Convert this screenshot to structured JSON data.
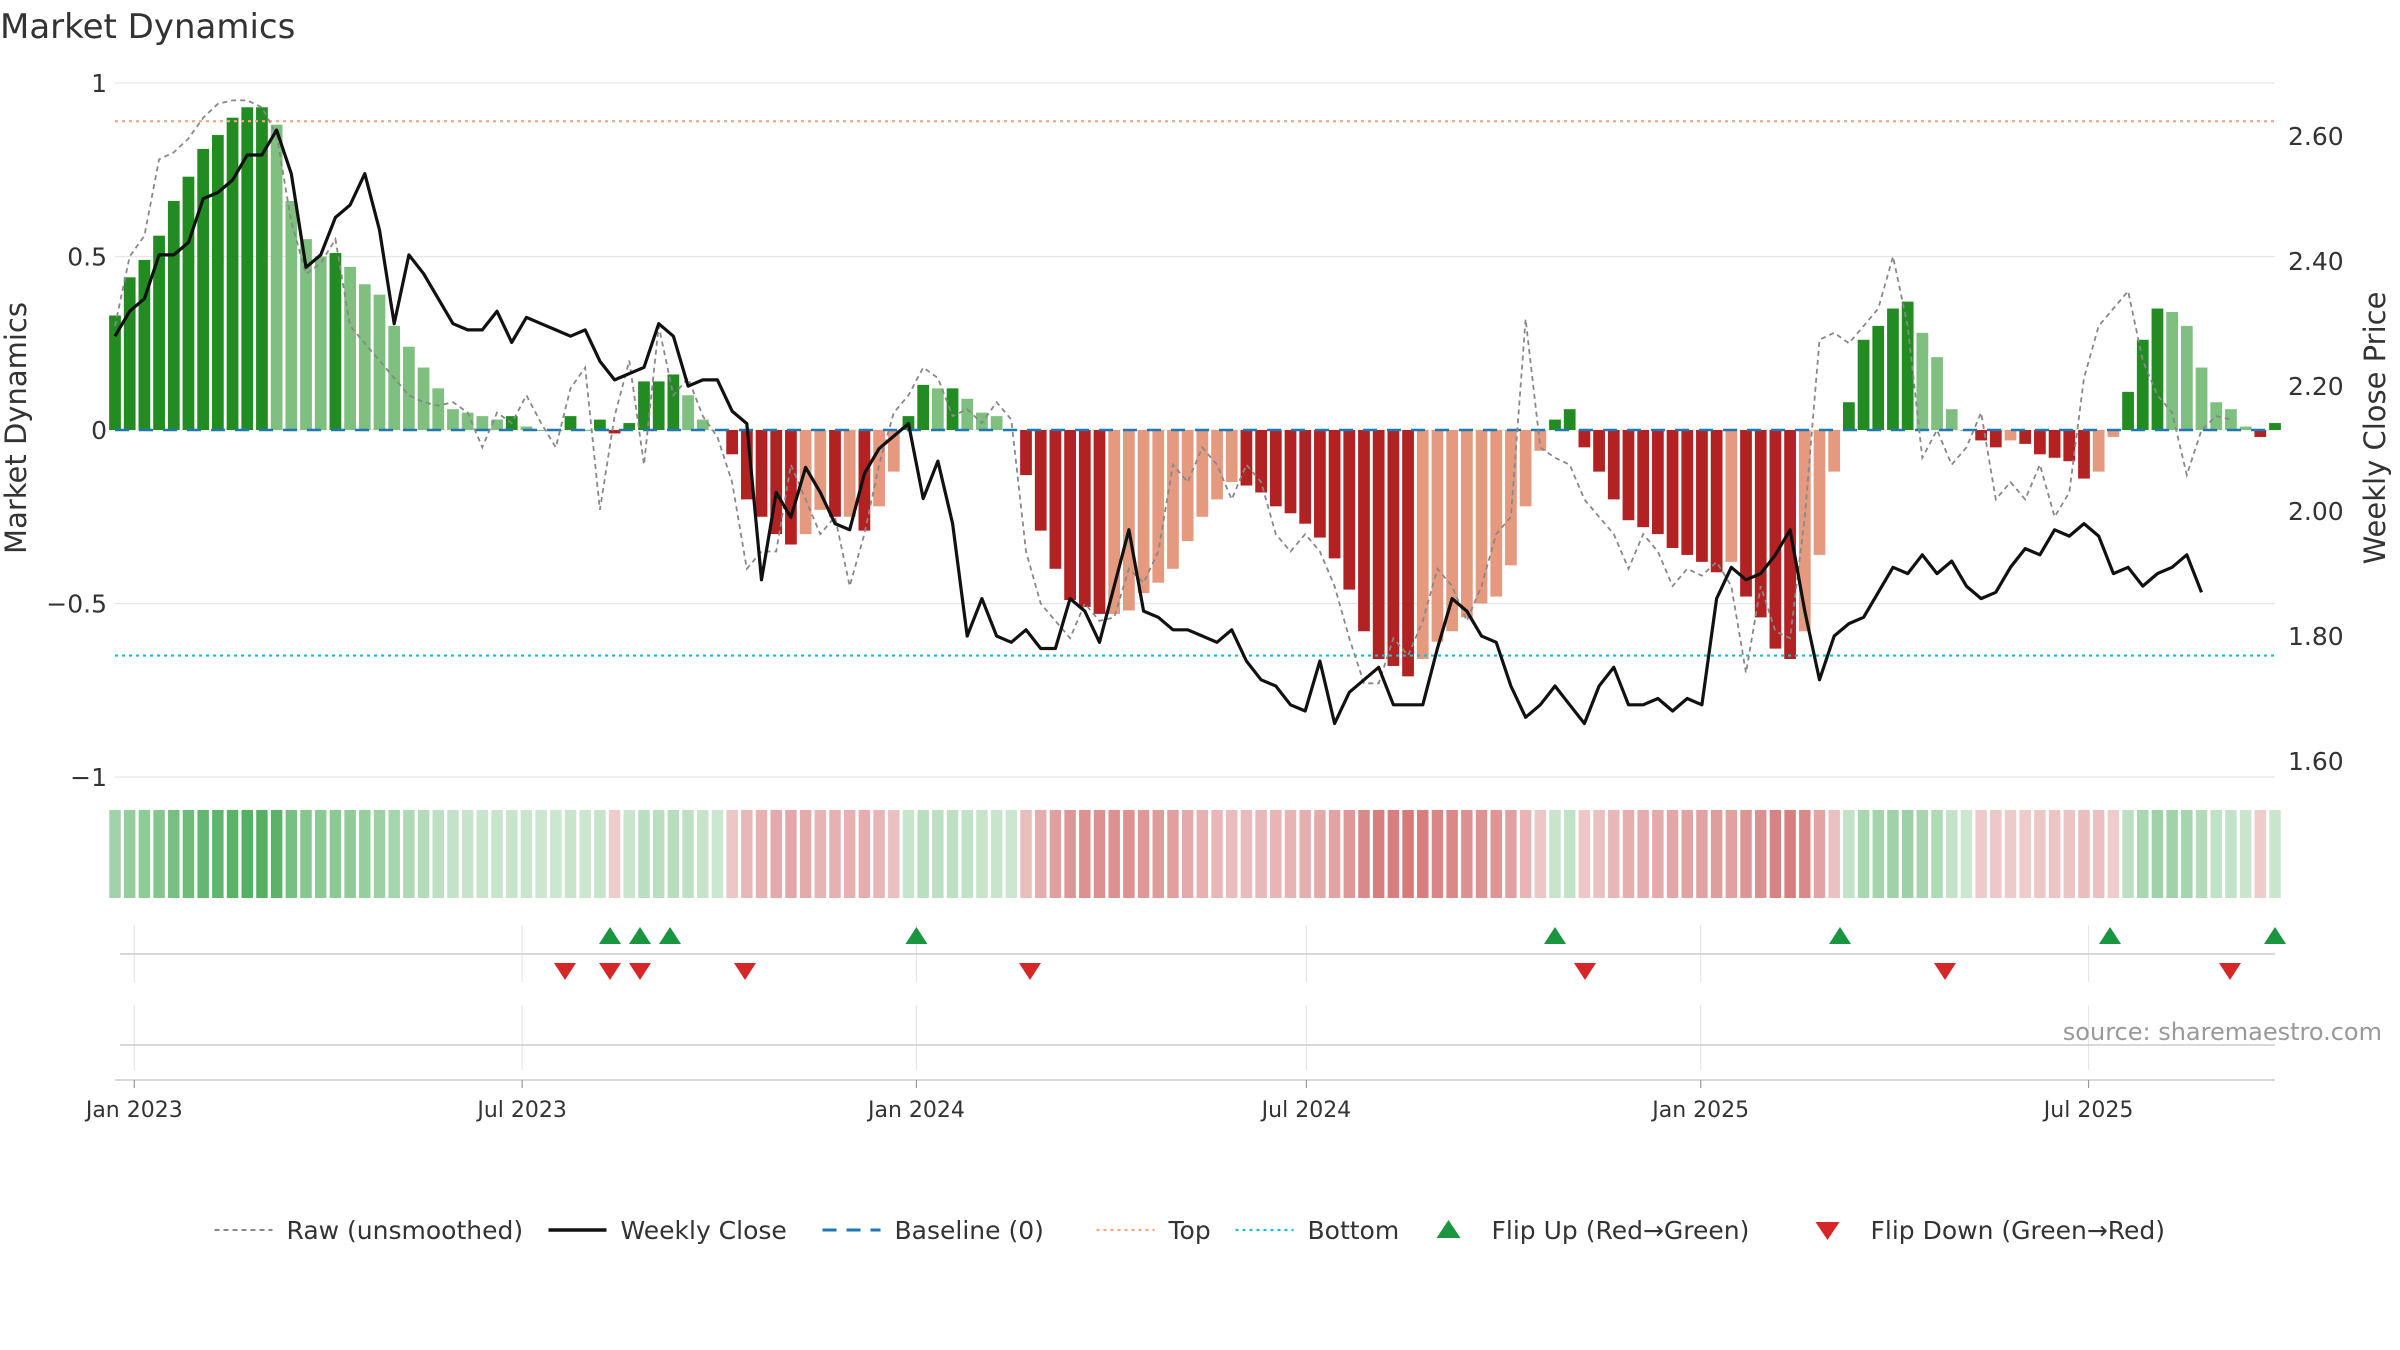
{
  "chart_data": {
    "type": "bar+line",
    "title": "Market Dynamics",
    "ylabel_left": "Market Dynamics",
    "ylabel_right": "Weekly Close Price",
    "ylim_left": [
      -1,
      1
    ],
    "ylim_right": [
      1.6,
      2.65
    ],
    "yticks_left": [
      "1",
      "0.5",
      "0",
      "−0.5",
      "−1"
    ],
    "yticks_left_values": [
      1,
      0.5,
      0,
      -0.5,
      -1
    ],
    "yticks_right": [
      "2.60",
      "2.40",
      "2.20",
      "2.00",
      "1.80",
      "1.60"
    ],
    "yticks_right_values": [
      2.6,
      2.4,
      2.2,
      2.0,
      1.8,
      1.6
    ],
    "x_start": "2022-12-23",
    "x_end": "2025-09-26",
    "xtick_labels": [
      "Jan 2023",
      "Jul 2023",
      "Jan 2024",
      "Jul 2024",
      "Jan 2025",
      "Jul 2025"
    ],
    "xtick_dates": [
      "2023-01-01",
      "2023-07-01",
      "2024-01-01",
      "2024-07-01",
      "2025-01-01",
      "2025-07-01"
    ],
    "top_level": 0.89,
    "bottom_level": -0.65,
    "grid": true,
    "legend_position": "bottom",
    "dynamics": [
      0.33,
      0.44,
      0.49,
      0.56,
      0.66,
      0.73,
      0.81,
      0.85,
      0.9,
      0.93,
      0.93,
      0.88,
      0.66,
      0.55,
      0.5,
      0.51,
      0.47,
      0.42,
      0.39,
      0.3,
      0.24,
      0.18,
      0.12,
      0.06,
      0.05,
      0.04,
      0.03,
      0.04,
      0.01,
      0,
      0,
      0.04,
      0,
      0.03,
      -0.01,
      0.02,
      0.14,
      0.14,
      0.16,
      0.1,
      0.03,
      0,
      -0.07,
      -0.2,
      -0.25,
      -0.3,
      -0.33,
      -0.3,
      -0.23,
      -0.25,
      -0.25,
      -0.29,
      -0.22,
      -0.12,
      0.04,
      0.13,
      0.12,
      0.12,
      0.09,
      0.05,
      0.04,
      0,
      -0.13,
      -0.29,
      -0.4,
      -0.49,
      -0.51,
      -0.53,
      -0.53,
      -0.52,
      -0.47,
      -0.44,
      -0.4,
      -0.32,
      -0.25,
      -0.2,
      -0.15,
      -0.16,
      -0.18,
      -0.22,
      -0.24,
      -0.27,
      -0.31,
      -0.37,
      -0.46,
      -0.58,
      -0.66,
      -0.68,
      -0.71,
      -0.66,
      -0.61,
      -0.58,
      -0.54,
      -0.5,
      -0.48,
      -0.39,
      -0.22,
      -0.06,
      0.03,
      0.06,
      -0.05,
      -0.12,
      -0.2,
      -0.26,
      -0.28,
      -0.3,
      -0.34,
      -0.36,
      -0.38,
      -0.41,
      -0.38,
      -0.48,
      -0.54,
      -0.63,
      -0.66,
      -0.58,
      -0.36,
      -0.12,
      0.08,
      0.26,
      0.3,
      0.35,
      0.37,
      0.28,
      0.21,
      0.06,
      0,
      -0.03,
      -0.05,
      -0.03,
      -0.04,
      -0.07,
      -0.08,
      -0.09,
      -0.14,
      -0.12,
      -0.02,
      0.11,
      0.26,
      0.35,
      0.34,
      0.3,
      0.18,
      0.08,
      0.06,
      0.01,
      -0.02,
      0.02
    ],
    "raw": [
      0.3,
      0.5,
      0.56,
      0.78,
      0.8,
      0.84,
      0.9,
      0.94,
      0.95,
      0.95,
      0.93,
      0.85,
      0.6,
      0.45,
      0.48,
      0.55,
      0.3,
      0.25,
      0.2,
      0.15,
      0.1,
      0.08,
      0.07,
      0.08,
      0.05,
      -0.05,
      0.05,
      0.02,
      0.1,
      0.02,
      -0.05,
      0.12,
      0.18,
      -0.23,
      0.04,
      0.2,
      -0.1,
      0.3,
      0.1,
      0.15,
      0.04,
      -0.02,
      -0.15,
      -0.4,
      -0.35,
      -0.35,
      -0.1,
      -0.2,
      -0.3,
      -0.25,
      -0.45,
      -0.3,
      -0.1,
      0.05,
      0.1,
      0.18,
      0.15,
      0.04,
      0.06,
      0.02,
      0.08,
      0.03,
      -0.35,
      -0.5,
      -0.55,
      -0.6,
      -0.5,
      -0.55,
      -0.54,
      -0.4,
      -0.44,
      -0.35,
      -0.1,
      -0.15,
      -0.05,
      -0.1,
      -0.2,
      -0.1,
      -0.15,
      -0.3,
      -0.35,
      -0.3,
      -0.35,
      -0.45,
      -0.6,
      -0.73,
      -0.73,
      -0.6,
      -0.65,
      -0.55,
      -0.4,
      -0.45,
      -0.55,
      -0.45,
      -0.3,
      -0.25,
      0.32,
      -0.05,
      -0.08,
      -0.1,
      -0.2,
      -0.25,
      -0.3,
      -0.4,
      -0.3,
      -0.35,
      -0.45,
      -0.4,
      -0.42,
      -0.38,
      -0.45,
      -0.7,
      -0.45,
      -0.58,
      -0.6,
      -0.25,
      0.26,
      0.28,
      0.25,
      0.3,
      0.35,
      0.5,
      0.3,
      -0.08,
      0,
      -0.1,
      -0.05,
      0.05,
      -0.2,
      -0.15,
      -0.2,
      -0.1,
      -0.25,
      -0.18,
      0.15,
      0.3,
      0.35,
      0.4,
      0.2,
      0.1,
      0.05,
      -0.13,
      0,
      0.04,
      0.03
    ],
    "close": [
      2.28,
      2.32,
      2.34,
      2.41,
      2.41,
      2.43,
      2.5,
      2.51,
      2.53,
      2.57,
      2.57,
      2.61,
      2.54,
      2.39,
      2.41,
      2.47,
      2.49,
      2.54,
      2.45,
      2.3,
      2.41,
      2.38,
      2.34,
      2.3,
      2.29,
      2.29,
      2.32,
      2.27,
      2.31,
      2.3,
      2.29,
      2.28,
      2.29,
      2.24,
      2.21,
      2.22,
      2.23,
      2.3,
      2.28,
      2.2,
      2.21,
      2.21,
      2.16,
      2.14,
      1.89,
      2.03,
      1.99,
      2.07,
      2.03,
      1.98,
      1.97,
      2.06,
      2.1,
      2.12,
      2.14,
      2.02,
      2.08,
      1.98,
      1.8,
      1.86,
      1.8,
      1.79,
      1.81,
      1.78,
      1.78,
      1.86,
      1.84,
      1.79,
      1.88,
      1.97,
      1.84,
      1.83,
      1.81,
      1.81,
      1.8,
      1.79,
      1.81,
      1.76,
      1.73,
      1.72,
      1.69,
      1.68,
      1.76,
      1.66,
      1.71,
      1.73,
      1.75,
      1.69,
      1.69,
      1.69,
      1.78,
      1.86,
      1.84,
      1.8,
      1.79,
      1.72,
      1.67,
      1.69,
      1.72,
      1.69,
      1.66,
      1.72,
      1.75,
      1.69,
      1.69,
      1.7,
      1.68,
      1.7,
      1.69,
      1.86,
      1.91,
      1.89,
      1.9,
      1.93,
      1.97,
      1.84,
      1.73,
      1.8,
      1.82,
      1.83,
      1.87,
      1.91,
      1.9,
      1.93,
      1.9,
      1.92,
      1.88,
      1.86,
      1.87,
      1.91,
      1.94,
      1.93,
      1.97,
      1.96,
      1.98,
      1.96,
      1.9,
      1.91,
      1.88,
      1.9,
      1.91,
      1.93,
      1.87
    ],
    "flip_up_dates": [
      "2023-08-11",
      "2023-08-25",
      "2023-09-08",
      "2024-01-01",
      "2024-10-25",
      "2025-03-07",
      "2025-07-11",
      "2025-09-26"
    ],
    "flip_down_dates": [
      "2023-07-21",
      "2023-08-11",
      "2023-08-25",
      "2023-10-13",
      "2024-02-23",
      "2024-11-08",
      "2025-04-25",
      "2025-09-05"
    ],
    "legend": [
      {
        "label": "Raw (unsmoothed)",
        "symbol": "dash-grey"
      },
      {
        "label": "Weekly Close",
        "symbol": "line-black"
      },
      {
        "label": "Baseline (0)",
        "symbol": "dash-blue"
      },
      {
        "label": "Top",
        "symbol": "dot-orange"
      },
      {
        "label": "Bottom",
        "symbol": "dot-cyan"
      },
      {
        "label": "Flip Up (Red→Green)",
        "symbol": "triangle-up-green"
      },
      {
        "label": "Flip Down (Green→Red)",
        "symbol": "triangle-down-red"
      }
    ],
    "source_text": "source: sharemaestro.com"
  },
  "colors": {
    "green_strong": "#228B22",
    "green_light": "#7FBF7F",
    "red_strong": "#B22222",
    "red_light": "#E59A80",
    "close_line": "#111111",
    "raw_line": "#888888",
    "baseline": "#1F77B4",
    "top": "#F4A582",
    "bottom": "#17BECF",
    "flip_up": "#1A9641",
    "flip_down": "#D62728",
    "grid": "#E6E6E6"
  }
}
